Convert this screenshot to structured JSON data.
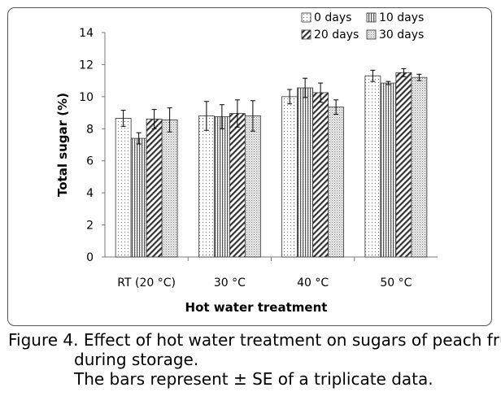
{
  "chart_data": {
    "type": "bar",
    "title": "",
    "xlabel": "Hot water treatment",
    "ylabel": "Total sugar (%)",
    "ylim": [
      0,
      14
    ],
    "yticks": [
      0,
      2,
      4,
      6,
      8,
      10,
      12,
      14
    ],
    "ytick_labels": [
      "0",
      "2",
      "4",
      "6",
      "8",
      "10",
      "12",
      "14"
    ],
    "grid": false,
    "legend_position": "top-right",
    "categories": [
      "RT (20 °C)",
      "30 °C",
      "40 °C",
      "50 °C"
    ],
    "series": [
      {
        "name": "0 days",
        "pattern": "dots",
        "values": [
          8.65,
          8.8,
          10.0,
          11.3
        ],
        "errors": [
          0.5,
          0.9,
          0.45,
          0.35
        ]
      },
      {
        "name": "10 days",
        "pattern": "vlines",
        "values": [
          7.4,
          8.75,
          10.55,
          10.85
        ],
        "errors": [
          0.35,
          0.75,
          0.6,
          0.1
        ]
      },
      {
        "name": "20 days",
        "pattern": "diagonal",
        "values": [
          8.6,
          8.95,
          10.25,
          11.5
        ],
        "errors": [
          0.6,
          0.85,
          0.6,
          0.25
        ]
      },
      {
        "name": "30 days",
        "pattern": "dense",
        "values": [
          8.55,
          8.8,
          9.35,
          11.2
        ],
        "errors": [
          0.75,
          0.95,
          0.45,
          0.2
        ]
      }
    ]
  },
  "caption": {
    "label": "Figure 4.",
    "line1": "Effect of hot water treatment on sugars of peach fruit",
    "line2": "during storage.",
    "line3": "The bars represent ± SE of a triplicate data."
  }
}
